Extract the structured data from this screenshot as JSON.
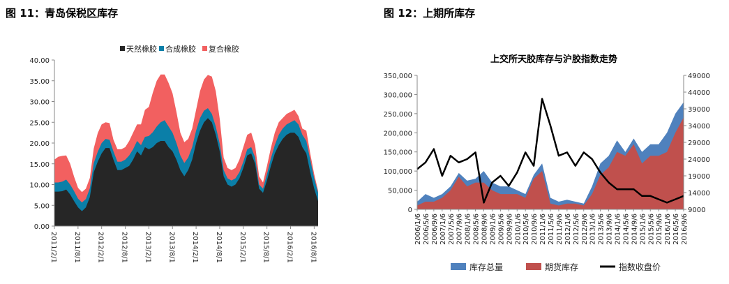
{
  "figures": {
    "left_title": "图 11：青岛保税区库存",
    "right_title": "图 12：上期所库存"
  },
  "chart_data": [
    {
      "type": "area",
      "stacked": true,
      "title": "",
      "xlabel": "",
      "ylabel": "",
      "ylim": [
        0,
        40
      ],
      "yticks": [
        "0.00",
        "5.00",
        "10.00",
        "15.00",
        "20.00",
        "25.00",
        "30.00",
        "35.00",
        "40.00"
      ],
      "x_tick_labels": [
        "2011/2/1",
        "2011/8/1",
        "2012/2/1",
        "2012/8/1",
        "2013/2/1",
        "2013/8/1",
        "2014/2/1",
        "2014/8/1",
        "2015/2/1",
        "2015/8/1",
        "2016/2/1",
        "2016/8/1"
      ],
      "x_tick_positions": [
        0,
        6,
        12,
        18,
        24,
        30,
        36,
        42,
        48,
        54,
        60,
        66
      ],
      "x_count": 68,
      "legend_position": "top",
      "grid": false,
      "series": [
        {
          "name": "天然橡胶",
          "color": "#262626",
          "values": [
            8.3,
            8.3,
            8.4,
            8.8,
            7.6,
            6.0,
            4.5,
            3.6,
            4.5,
            7.0,
            13.0,
            15.5,
            17.5,
            18.8,
            18.8,
            16.0,
            13.5,
            13.5,
            14.0,
            14.5,
            16.0,
            18.0,
            17.0,
            19.0,
            18.5,
            19.0,
            20.0,
            20.5,
            20.5,
            19.0,
            18.0,
            16.0,
            13.5,
            12.0,
            13.5,
            16.0,
            20.0,
            23.0,
            25.0,
            26.0,
            25.0,
            22.0,
            18.0,
            12.0,
            10.0,
            9.5,
            10.0,
            11.5,
            14.0,
            17.0,
            17.5,
            15.0,
            9.0,
            8.0,
            11.0,
            14.5,
            17.5,
            19.5,
            21.0,
            22.0,
            22.5,
            22.5,
            21.5,
            19.0,
            17.5,
            13.0,
            9.0,
            6.0
          ]
        },
        {
          "name": "合成橡胶",
          "color": "#0b7fa8",
          "values": [
            2.2,
            2.2,
            2.3,
            2.4,
            2.4,
            2.4,
            2.1,
            2.1,
            2.0,
            2.1,
            2.2,
            2.4,
            2.5,
            2.2,
            2.0,
            2.0,
            2.0,
            2.0,
            2.0,
            2.5,
            2.5,
            2.5,
            2.5,
            2.5,
            3.2,
            3.6,
            4.0,
            4.5,
            5.0,
            5.0,
            4.5,
            4.0,
            3.5,
            3.2,
            3.0,
            3.0,
            3.0,
            3.0,
            2.8,
            2.4,
            2.0,
            2.0,
            1.8,
            1.5,
            1.5,
            1.5,
            1.5,
            1.5,
            1.5,
            1.5,
            1.5,
            1.5,
            1.0,
            1.0,
            1.5,
            1.8,
            2.0,
            2.5,
            2.5,
            2.5,
            2.5,
            3.0,
            3.0,
            3.0,
            3.0,
            3.0,
            2.5,
            2.0
          ]
        },
        {
          "name": "复合橡胶",
          "color": "#f26060",
          "values": [
            5.5,
            6.2,
            6.2,
            5.8,
            5.0,
            3.5,
            2.6,
            2.5,
            2.5,
            2.5,
            3.5,
            4.5,
            4.5,
            4.0,
            4.0,
            2.8,
            3.0,
            3.0,
            3.0,
            3.5,
            4.0,
            4.0,
            5.0,
            6.5,
            7.0,
            9.5,
            11.0,
            11.5,
            11.0,
            10.5,
            9.5,
            7.5,
            5.5,
            5.0,
            4.5,
            4.5,
            5.0,
            6.5,
            7.5,
            8.0,
            9.0,
            8.5,
            6.0,
            3.0,
            2.5,
            2.5,
            2.5,
            3.0,
            3.5,
            3.5,
            3.5,
            3.0,
            2.0,
            1.5,
            2.0,
            2.5,
            3.0,
            3.0,
            2.5,
            2.5,
            2.5,
            2.5,
            2.0,
            1.5,
            2.5,
            1.5,
            1.0,
            0.5
          ]
        }
      ]
    },
    {
      "type": "area",
      "title": "上交所天胶库存与沪胶指数走势",
      "xlabel": "",
      "ylabel": "",
      "ylim": [
        0,
        350000
      ],
      "yticks": [
        "0",
        "50,000",
        "100,000",
        "150,000",
        "200,000",
        "250,000",
        "300,000",
        "350,000"
      ],
      "y2lim": [
        9000,
        49000
      ],
      "y2ticks": [
        "9000",
        "14000",
        "19000",
        "24000",
        "29000",
        "34000",
        "39000",
        "44000",
        "49000"
      ],
      "x_tick_labels": [
        "2006/1/6",
        "2006/5/6",
        "2006/9/6",
        "2007/1/6",
        "2007/5/6",
        "2007/9/6",
        "2008/1/6",
        "2008/5/6",
        "2008/9/6",
        "2009/1/6",
        "2009/5/6",
        "2009/9/6",
        "2010/1/6",
        "2010/5/6",
        "2010/9/6",
        "2011/1/6",
        "2011/5/6",
        "2011/9/6",
        "2012/1/6",
        "2012/5/6",
        "2012/9/6",
        "2013/1/6",
        "2013/5/6",
        "2013/9/6",
        "2014/1/6",
        "2014/5/6",
        "2014/9/6",
        "2015/1/6",
        "2015/5/6",
        "2015/9/6",
        "2016/1/6",
        "2016/5/6",
        "2016/9/6"
      ],
      "x_count": 33,
      "legend_position": "bottom",
      "grid": false,
      "series": [
        {
          "name": "库存总量",
          "color": "#4f81bd",
          "kind": "area",
          "values": [
            20000,
            40000,
            30000,
            40000,
            60000,
            95000,
            75000,
            80000,
            100000,
            70000,
            60000,
            60000,
            50000,
            40000,
            90000,
            120000,
            30000,
            20000,
            25000,
            20000,
            15000,
            60000,
            120000,
            140000,
            180000,
            150000,
            185000,
            150000,
            170000,
            170000,
            200000,
            250000,
            280000
          ]
        },
        {
          "name": "期货库存",
          "color": "#c0504d",
          "kind": "area",
          "values": [
            10000,
            20000,
            20000,
            30000,
            50000,
            85000,
            60000,
            70000,
            70000,
            50000,
            40000,
            40000,
            40000,
            30000,
            80000,
            100000,
            15000,
            10000,
            15000,
            15000,
            10000,
            40000,
            90000,
            110000,
            150000,
            140000,
            170000,
            120000,
            140000,
            140000,
            150000,
            200000,
            240000
          ]
        },
        {
          "name": "指数收盘价",
          "color": "#000000",
          "kind": "line",
          "axis": "right",
          "values": [
            21000,
            23000,
            27000,
            19000,
            25000,
            23000,
            24000,
            26000,
            11000,
            17000,
            19000,
            16000,
            20000,
            26000,
            22000,
            42000,
            34000,
            25000,
            26000,
            22000,
            26000,
            24000,
            20000,
            17000,
            15000,
            15000,
            15000,
            13000,
            13000,
            12000,
            11000,
            12000,
            13000
          ]
        }
      ]
    }
  ]
}
